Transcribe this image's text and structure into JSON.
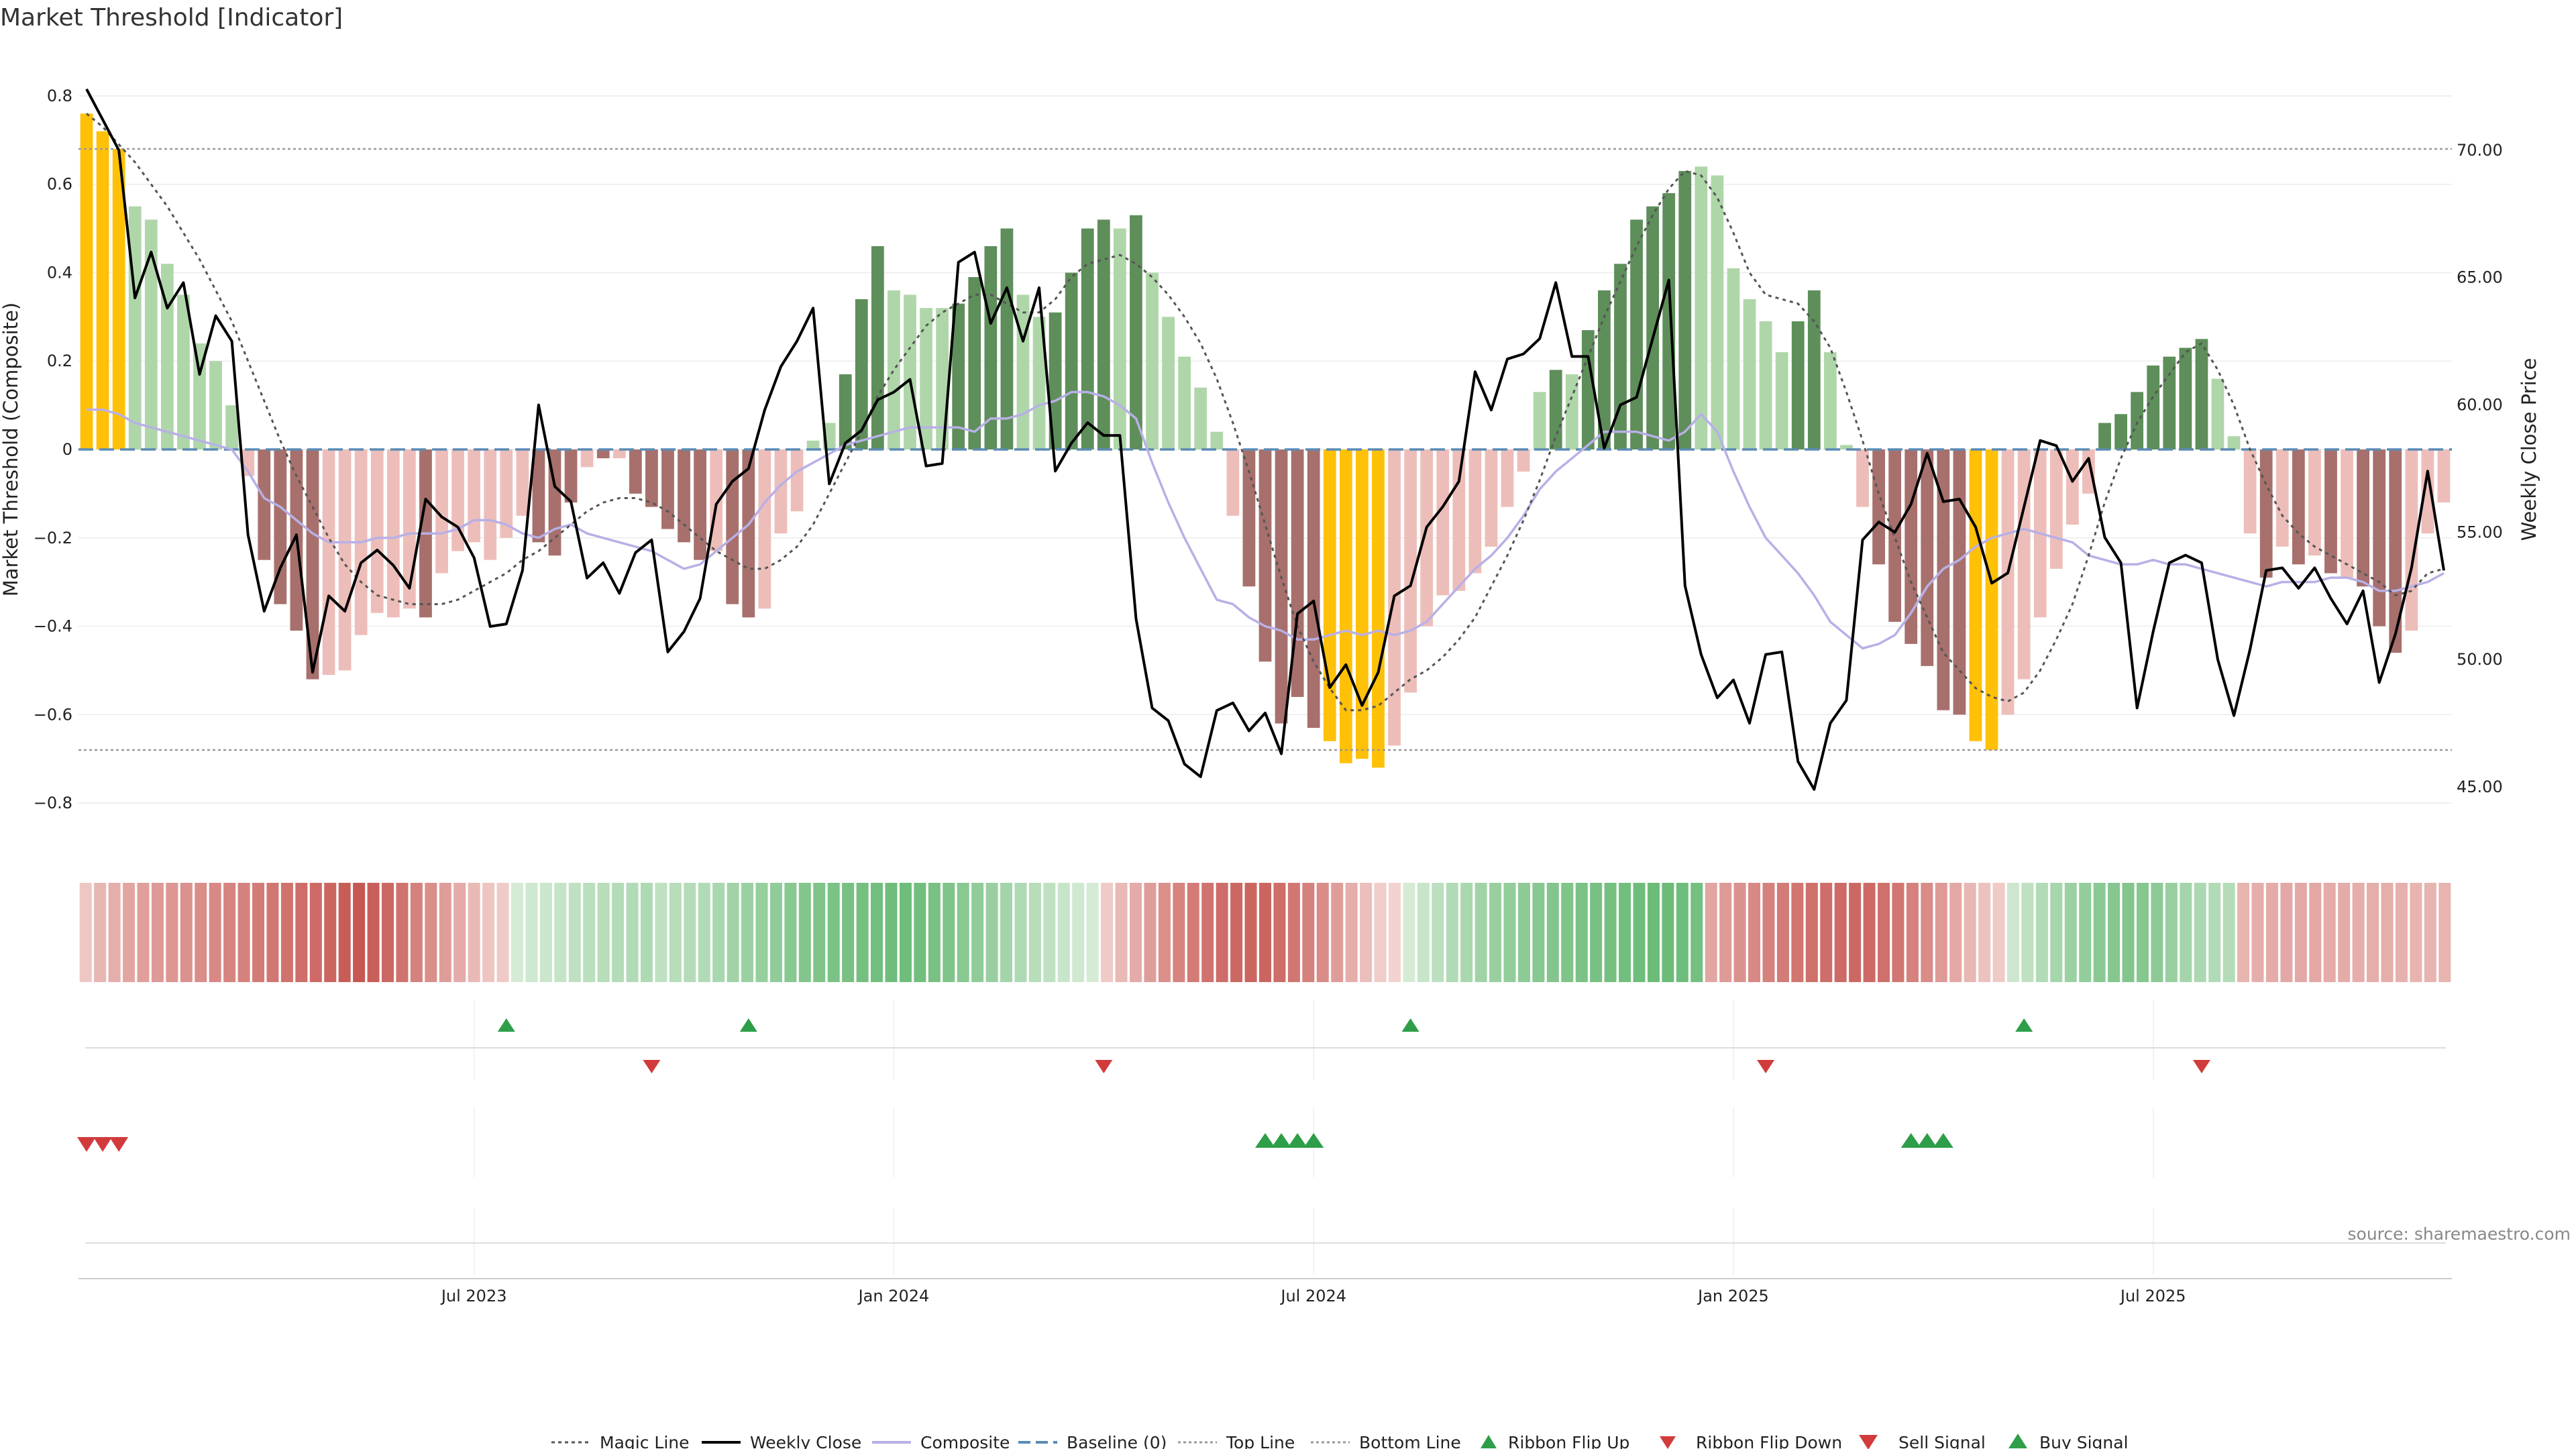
{
  "title": "Market Threshold [Indicator]",
  "source": "source: sharemaestro.com",
  "colors": {
    "gold": "#ffc107",
    "bull_dark": "#5e8e5a",
    "bull_light": "#afd6a9",
    "bear_dark": "#a7706c",
    "bear_light": "#edbeb9",
    "close": "#000000",
    "composite": "#b8b0e6",
    "magic": "#555555",
    "baseline": "#5b8bb5",
    "threshold": "#999999",
    "up_signal": "#2e9e48",
    "down_signal": "#d23b3b"
  },
  "chart_data": {
    "type": "bar",
    "title": "Market Threshold [Indicator]",
    "ylabel_left": "Market Threshold (Composite)",
    "ylabel_right": "Weekly Close Price",
    "ylim_left": [
      -0.85,
      0.85
    ],
    "ylim_right": [
      43.5,
      73.0
    ],
    "yticks_left": [
      "0.8",
      "0.6",
      "0.4",
      "0.2",
      "0",
      "−0.2",
      "−0.4",
      "−0.6",
      "−0.8"
    ],
    "yticks_right": [
      "70.00",
      "65.00",
      "60.00",
      "55.00",
      "50.00",
      "45.00"
    ],
    "x_ticks": [
      {
        "label": "Jul 2023",
        "week": 24
      },
      {
        "label": "Jan 2024",
        "week": 50
      },
      {
        "label": "Jul 2024",
        "week": 76
      },
      {
        "label": "Jan 2025",
        "week": 102
      },
      {
        "label": "Jul 2025",
        "week": 128
      }
    ],
    "top_line": 0.68,
    "bottom_line": -0.68,
    "baseline": 0,
    "bars": [
      0.76,
      0.72,
      0.68,
      0.55,
      0.52,
      0.42,
      0.35,
      0.24,
      0.2,
      0.1,
      -0.06,
      -0.25,
      -0.35,
      -0.41,
      -0.52,
      -0.51,
      -0.5,
      -0.42,
      -0.37,
      -0.38,
      -0.36,
      -0.38,
      -0.28,
      -0.23,
      -0.21,
      -0.25,
      -0.2,
      -0.15,
      -0.21,
      -0.24,
      -0.12,
      -0.04,
      -0.02,
      -0.02,
      -0.1,
      -0.13,
      -0.18,
      -0.21,
      -0.25,
      -0.23,
      -0.35,
      -0.38,
      -0.36,
      -0.19,
      -0.14,
      0.02,
      0.06,
      0.17,
      0.34,
      0.46,
      0.36,
      0.35,
      0.32,
      0.32,
      0.33,
      0.39,
      0.46,
      0.5,
      0.35,
      0.3,
      0.31,
      0.4,
      0.5,
      0.52,
      0.5,
      0.53,
      0.4,
      0.3,
      0.21,
      0.14,
      0.04,
      -0.15,
      -0.31,
      -0.48,
      -0.62,
      -0.56,
      -0.63,
      -0.66,
      -0.71,
      -0.7,
      -0.72,
      -0.67,
      -0.55,
      -0.4,
      -0.33,
      -0.32,
      -0.28,
      -0.22,
      -0.13,
      -0.05,
      0.13,
      0.18,
      0.17,
      0.27,
      0.36,
      0.42,
      0.52,
      0.55,
      0.58,
      0.63,
      0.64,
      0.62,
      0.41,
      0.34,
      0.29,
      0.22,
      0.29,
      0.36,
      0.22,
      0.01,
      -0.13,
      -0.26,
      -0.39,
      -0.44,
      -0.49,
      -0.59,
      -0.6,
      -0.66,
      -0.68,
      -0.6,
      -0.52,
      -0.38,
      -0.27,
      -0.17,
      -0.1,
      0.06,
      0.08,
      0.13,
      0.19,
      0.21,
      0.23,
      0.25,
      0.16,
      0.03,
      -0.19,
      -0.29,
      -0.22,
      -0.26,
      -0.24,
      -0.28,
      -0.29,
      -0.31,
      -0.4,
      -0.46,
      -0.41,
      -0.19,
      -0.12
    ],
    "bar_colors": [
      "gold",
      "gold",
      "gold",
      "bull_light",
      "bull_light",
      "bull_light",
      "bull_light",
      "bull_light",
      "bull_light",
      "bull_light",
      "bear_light",
      "bear_dark",
      "bear_dark",
      "bear_dark",
      "bear_dark",
      "bear_light",
      "bear_light",
      "bear_light",
      "bear_light",
      "bear_light",
      "bear_light",
      "bear_dark",
      "bear_light",
      "bear_light",
      "bear_light",
      "bear_light",
      "bear_light",
      "bear_light",
      "bear_dark",
      "bear_dark",
      "bear_dark",
      "bear_light",
      "bear_dark",
      "bear_light",
      "bear_dark",
      "bear_dark",
      "bear_dark",
      "bear_dark",
      "bear_dark",
      "bear_light",
      "bear_dark",
      "bear_dark",
      "bear_light",
      "bear_light",
      "bear_light",
      "bull_light",
      "bull_light",
      "bull_dark",
      "bull_dark",
      "bull_dark",
      "bull_light",
      "bull_light",
      "bull_light",
      "bull_light",
      "bull_dark",
      "bull_dark",
      "bull_dark",
      "bull_dark",
      "bull_light",
      "bull_light",
      "bull_dark",
      "bull_dark",
      "bull_dark",
      "bull_dark",
      "bull_light",
      "bull_dark",
      "bull_light",
      "bull_light",
      "bull_light",
      "bull_light",
      "bull_light",
      "bear_light",
      "bear_dark",
      "bear_dark",
      "bear_dark",
      "bear_dark",
      "bear_dark",
      "gold",
      "gold",
      "gold",
      "gold",
      "bear_light",
      "bear_light",
      "bear_light",
      "bear_light",
      "bear_light",
      "bear_light",
      "bear_light",
      "bear_light",
      "bear_light",
      "bull_light",
      "bull_dark",
      "bull_light",
      "bull_dark",
      "bull_dark",
      "bull_dark",
      "bull_dark",
      "bull_dark",
      "bull_dark",
      "bull_dark",
      "bull_light",
      "bull_light",
      "bull_light",
      "bull_light",
      "bull_light",
      "bull_light",
      "bull_dark",
      "bull_dark",
      "bull_light",
      "bull_light",
      "bear_light",
      "bear_dark",
      "bear_dark",
      "bear_dark",
      "bear_dark",
      "bear_dark",
      "bear_dark",
      "gold",
      "gold",
      "bear_light",
      "bear_light",
      "bear_light",
      "bear_light",
      "bear_light",
      "bear_light",
      "bull_dark",
      "bull_dark",
      "bull_dark",
      "bull_dark",
      "bull_dark",
      "bull_dark",
      "bull_dark",
      "bull_light",
      "bull_light",
      "bear_light",
      "bear_dark",
      "bear_light",
      "bear_dark",
      "bear_light",
      "bear_dark",
      "bear_light",
      "bear_dark",
      "bear_dark",
      "bear_dark",
      "bear_light",
      "bear_light",
      "bear_light"
    ],
    "weekly_close": [
      72.4,
      71.2,
      70.0,
      64.2,
      66.0,
      63.8,
      64.8,
      61.2,
      63.5,
      62.5,
      54.9,
      51.9,
      53.6,
      54.9,
      49.5,
      52.5,
      51.9,
      53.8,
      54.3,
      53.7,
      52.8,
      56.3,
      55.6,
      55.2,
      54.0,
      51.3,
      51.4,
      53.5,
      60.0,
      56.8,
      56.2,
      53.2,
      53.8,
      52.6,
      54.2,
      54.7,
      50.3,
      51.1,
      52.4,
      56.1,
      57.0,
      57.5,
      59.8,
      61.5,
      62.5,
      63.8,
      56.9,
      58.5,
      59.0,
      60.2,
      60.5,
      61.0,
      57.6,
      57.7,
      65.6,
      66.0,
      63.2,
      64.6,
      62.5,
      64.6,
      57.4,
      58.5,
      59.3,
      58.8,
      58.8,
      51.6,
      48.1,
      47.6,
      45.9,
      45.4,
      48.0,
      48.3,
      47.2,
      47.9,
      46.3,
      51.8,
      52.3,
      48.9,
      49.8,
      48.2,
      49.5,
      52.5,
      52.9,
      55.2,
      56.0,
      57.0,
      61.3,
      59.8,
      61.8,
      62.0,
      62.6,
      64.8,
      61.9,
      61.9,
      58.3,
      60.0,
      60.3,
      62.6,
      64.9,
      52.9,
      50.2,
      48.5,
      49.2,
      47.5,
      50.2,
      50.3,
      46.0,
      44.9,
      47.5,
      48.4,
      54.7,
      55.4,
      55.0,
      56.1,
      58.1,
      56.2,
      56.3,
      55.2,
      53.0,
      53.4,
      56.0,
      58.6,
      58.4,
      57.0,
      57.9,
      54.8,
      53.8,
      48.1,
      51.1,
      53.8,
      54.1,
      53.8,
      50.0,
      47.8,
      50.4,
      53.5,
      53.6,
      52.8,
      53.6,
      52.4,
      51.4,
      52.7,
      49.1,
      51.0,
      53.6,
      57.4,
      53.5
    ],
    "composite": [
      0.09,
      0.09,
      0.08,
      0.06,
      0.05,
      0.04,
      0.03,
      0.02,
      0.01,
      0.0,
      -0.05,
      -0.11,
      -0.13,
      -0.16,
      -0.19,
      -0.21,
      -0.21,
      -0.21,
      -0.2,
      -0.2,
      -0.19,
      -0.19,
      -0.19,
      -0.18,
      -0.16,
      -0.16,
      -0.17,
      -0.19,
      -0.2,
      -0.18,
      -0.17,
      -0.19,
      -0.2,
      -0.21,
      -0.22,
      -0.23,
      -0.25,
      -0.27,
      -0.26,
      -0.23,
      -0.2,
      -0.17,
      -0.12,
      -0.08,
      -0.05,
      -0.03,
      -0.01,
      0.01,
      0.02,
      0.03,
      0.04,
      0.05,
      0.05,
      0.05,
      0.05,
      0.04,
      0.07,
      0.07,
      0.08,
      0.1,
      0.11,
      0.13,
      0.13,
      0.12,
      0.1,
      0.07,
      -0.03,
      -0.12,
      -0.2,
      -0.27,
      -0.34,
      -0.35,
      -0.38,
      -0.4,
      -0.41,
      -0.43,
      -0.43,
      -0.42,
      -0.41,
      -0.42,
      -0.41,
      -0.42,
      -0.41,
      -0.39,
      -0.35,
      -0.31,
      -0.27,
      -0.24,
      -0.2,
      -0.15,
      -0.09,
      -0.05,
      -0.02,
      0.01,
      0.04,
      0.04,
      0.04,
      0.03,
      0.02,
      0.04,
      0.08,
      0.04,
      -0.05,
      -0.13,
      -0.2,
      -0.24,
      -0.28,
      -0.33,
      -0.39,
      -0.42,
      -0.45,
      -0.44,
      -0.42,
      -0.37,
      -0.31,
      -0.27,
      -0.25,
      -0.22,
      -0.2,
      -0.19,
      -0.18,
      -0.19,
      -0.2,
      -0.21,
      -0.24,
      -0.25,
      -0.26,
      -0.26,
      -0.25,
      -0.26,
      -0.26,
      -0.27,
      -0.28,
      -0.29,
      -0.3,
      -0.31,
      -0.3,
      -0.3,
      -0.3,
      -0.29,
      -0.29,
      -0.3,
      -0.32,
      -0.32,
      -0.31,
      -0.3,
      -0.28
    ],
    "magic_line": [
      0.76,
      0.73,
      0.69,
      0.65,
      0.6,
      0.55,
      0.49,
      0.43,
      0.36,
      0.29,
      0.2,
      0.11,
      0.02,
      -0.06,
      -0.13,
      -0.2,
      -0.26,
      -0.3,
      -0.33,
      -0.34,
      -0.35,
      -0.35,
      -0.35,
      -0.34,
      -0.32,
      -0.3,
      -0.28,
      -0.25,
      -0.23,
      -0.2,
      -0.17,
      -0.14,
      -0.12,
      -0.11,
      -0.11,
      -0.12,
      -0.14,
      -0.17,
      -0.2,
      -0.23,
      -0.25,
      -0.27,
      -0.27,
      -0.25,
      -0.22,
      -0.17,
      -0.1,
      -0.03,
      0.04,
      0.12,
      0.18,
      0.23,
      0.28,
      0.31,
      0.33,
      0.35,
      0.35,
      0.33,
      0.31,
      0.31,
      0.34,
      0.39,
      0.42,
      0.43,
      0.44,
      0.42,
      0.39,
      0.35,
      0.3,
      0.24,
      0.16,
      0.06,
      -0.05,
      -0.17,
      -0.29,
      -0.4,
      -0.48,
      -0.54,
      -0.59,
      -0.59,
      -0.58,
      -0.55,
      -0.52,
      -0.5,
      -0.47,
      -0.43,
      -0.38,
      -0.31,
      -0.24,
      -0.16,
      -0.07,
      0.03,
      0.12,
      0.21,
      0.3,
      0.38,
      0.46,
      0.53,
      0.59,
      0.63,
      0.62,
      0.57,
      0.49,
      0.4,
      0.35,
      0.34,
      0.33,
      0.29,
      0.23,
      0.13,
      0.02,
      -0.1,
      -0.2,
      -0.3,
      -0.38,
      -0.46,
      -0.5,
      -0.54,
      -0.56,
      -0.57,
      -0.55,
      -0.5,
      -0.43,
      -0.35,
      -0.24,
      -0.12,
      -0.02,
      0.06,
      0.12,
      0.17,
      0.22,
      0.24,
      0.18,
      0.1,
      0.0,
      -0.08,
      -0.15,
      -0.19,
      -0.22,
      -0.24,
      -0.26,
      -0.28,
      -0.3,
      -0.33,
      -0.32,
      -0.28,
      -0.27
    ],
    "ribbon": [
      -0.16,
      -0.28,
      -0.34,
      -0.4,
      -0.45,
      -0.48,
      -0.51,
      -0.54,
      -0.57,
      -0.6,
      -0.64,
      -0.66,
      -0.7,
      -0.74,
      -0.76,
      -0.8,
      -0.82,
      -0.86,
      -0.92,
      -0.96,
      -0.9,
      -0.84,
      -0.76,
      -0.66,
      -0.56,
      -0.46,
      -0.36,
      -0.26,
      -0.18,
      -0.14,
      0.14,
      0.18,
      0.22,
      0.26,
      0.3,
      0.34,
      0.36,
      0.38,
      0.4,
      0.42,
      0.3,
      0.36,
      0.38,
      0.4,
      0.46,
      0.52,
      0.56,
      0.6,
      0.64,
      0.7,
      0.74,
      0.76,
      0.8,
      0.82,
      0.84,
      0.86,
      0.88,
      0.88,
      0.86,
      0.82,
      0.76,
      0.7,
      0.64,
      0.58,
      0.5,
      0.42,
      0.36,
      0.3,
      0.24,
      0.18,
      0.14,
      -0.14,
      -0.26,
      -0.36,
      -0.46,
      -0.56,
      -0.64,
      -0.7,
      -0.76,
      -0.8,
      -0.84,
      -0.86,
      -0.86,
      -0.8,
      -0.74,
      -0.66,
      -0.58,
      -0.46,
      -0.34,
      -0.22,
      -0.12,
      -0.08,
      0.14,
      0.24,
      0.32,
      0.4,
      0.46,
      0.52,
      0.58,
      0.62,
      0.66,
      0.7,
      0.74,
      0.76,
      0.8,
      0.82,
      0.84,
      0.86,
      0.88,
      0.9,
      0.9,
      0.88,
      0.84,
      -0.4,
      -0.48,
      -0.54,
      -0.6,
      -0.66,
      -0.7,
      -0.74,
      -0.78,
      -0.8,
      -0.82,
      -0.84,
      -0.82,
      -0.78,
      -0.74,
      -0.66,
      -0.58,
      -0.48,
      -0.38,
      -0.28,
      -0.2,
      -0.14,
      0.2,
      0.3,
      0.4,
      0.48,
      0.56,
      0.62,
      0.68,
      0.72,
      0.74,
      0.72,
      0.66,
      0.58,
      0.5,
      0.44,
      0.4,
      0.38,
      -0.3,
      -0.34,
      -0.36,
      -0.38,
      -0.38,
      -0.38,
      -0.36,
      -0.36,
      -0.34,
      -0.34,
      -0.34,
      -0.32,
      -0.3,
      -0.3,
      -0.3
    ],
    "ribbon_flip_up": [
      26,
      41,
      82,
      120
    ],
    "ribbon_flip_down": [
      35,
      63,
      104,
      131
    ],
    "sell_signals": [
      0,
      1,
      2
    ],
    "buy_signals": [
      73,
      74,
      75,
      76,
      113,
      114,
      115
    ]
  },
  "legend": {
    "magic": "Magic Line",
    "close": "Weekly Close",
    "composite": "Composite",
    "baseline": "Baseline (0)",
    "top": "Top Line",
    "bottom": "Bottom Line",
    "flip_up": "Ribbon Flip Up",
    "flip_down": "Ribbon Flip Down",
    "sell": "Sell Signal",
    "buy": "Buy Signal"
  }
}
